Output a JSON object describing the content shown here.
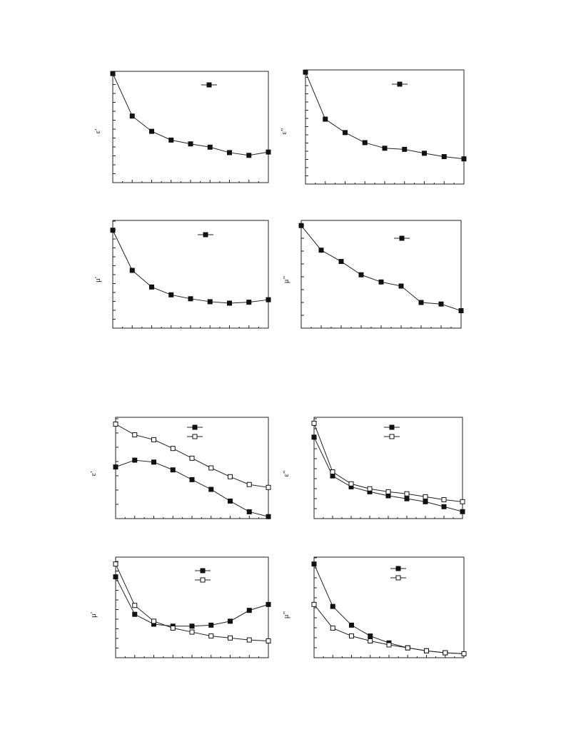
{
  "chart_data": [
    {
      "type": "line",
      "ylabel": "ε'",
      "series": [
        {
          "marker": "filled",
          "values": [
            1.0,
            0.61,
            0.47,
            0.39,
            0.355,
            0.325,
            0.275,
            0.25,
            0.28
          ]
        }
      ],
      "ylim": [
        0,
        1.02
      ],
      "grid": false,
      "legend": "top-right"
    },
    {
      "type": "line",
      "ylabel": "ε\"",
      "series": [
        {
          "marker": "filled",
          "values": [
            1.0,
            0.58,
            0.46,
            0.37,
            0.32,
            0.31,
            0.275,
            0.245,
            0.225
          ]
        }
      ],
      "ylim": [
        0,
        1.02
      ],
      "grid": false,
      "legend": "top-right"
    },
    {
      "type": "line",
      "ylabel": "μ'",
      "series": [
        {
          "marker": "filled",
          "values": [
            1.0,
            0.59,
            0.42,
            0.34,
            0.3,
            0.27,
            0.255,
            0.265,
            0.29
          ]
        }
      ],
      "ylim": [
        0,
        1.1
      ],
      "grid": false,
      "legend": "top-right"
    },
    {
      "type": "line",
      "ylabel": "μ\"",
      "series": [
        {
          "marker": "filled",
          "values": [
            1.0,
            0.76,
            0.65,
            0.52,
            0.45,
            0.41,
            0.25,
            0.235,
            0.17
          ]
        }
      ],
      "ylim": [
        0,
        1.05
      ],
      "grid": false,
      "legend": "top-right"
    },
    {
      "type": "line",
      "ylabel": "ε'",
      "series": [
        {
          "marker": "filled",
          "values": [
            0.51,
            0.58,
            0.56,
            0.48,
            0.38,
            0.28,
            0.16,
            0.05,
            0.0
          ]
        },
        {
          "marker": "open",
          "values": [
            0.95,
            0.84,
            0.79,
            0.7,
            0.6,
            0.5,
            0.41,
            0.33,
            0.3
          ]
        }
      ],
      "ylim": [
        -0.02,
        1.02
      ],
      "grid": false,
      "legend": "top-right"
    },
    {
      "type": "line",
      "ylabel": "ε\"",
      "series": [
        {
          "marker": "filled",
          "values": [
            0.82,
            0.43,
            0.32,
            0.27,
            0.23,
            0.2,
            0.17,
            0.12,
            0.07
          ]
        },
        {
          "marker": "open",
          "values": [
            0.96,
            0.47,
            0.35,
            0.3,
            0.27,
            0.25,
            0.22,
            0.19,
            0.17
          ]
        }
      ],
      "ylim": [
        0,
        1.02
      ],
      "grid": false,
      "legend": "top-right"
    },
    {
      "type": "line",
      "ylabel": "μ'",
      "series": [
        {
          "marker": "filled",
          "values": [
            0.82,
            0.44,
            0.34,
            0.32,
            0.32,
            0.33,
            0.37,
            0.48,
            0.54
          ]
        },
        {
          "marker": "open",
          "values": [
            0.95,
            0.53,
            0.37,
            0.3,
            0.26,
            0.22,
            0.2,
            0.18,
            0.17
          ]
        }
      ],
      "ylim": [
        0,
        1.02
      ],
      "grid": false,
      "legend": "top-right"
    },
    {
      "type": "line",
      "ylabel": "μ\"",
      "series": [
        {
          "marker": "filled",
          "values": [
            0.95,
            0.52,
            0.33,
            0.22,
            0.15,
            0.1,
            0.07,
            0.05,
            0.04
          ]
        },
        {
          "marker": "open",
          "values": [
            0.54,
            0.3,
            0.22,
            0.17,
            0.13,
            0.1,
            0.07,
            0.05,
            0.04
          ]
        }
      ],
      "ylim": [
        0,
        1.02
      ],
      "grid": false,
      "legend": "top-right"
    }
  ]
}
